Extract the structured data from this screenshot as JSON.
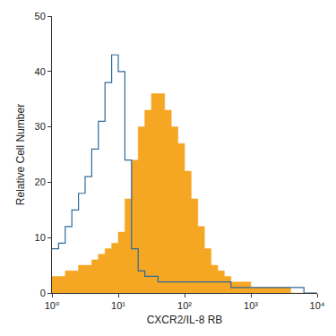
{
  "chart_data": {
    "type": "histogram",
    "x_label": "CXCR2/IL-8 RB",
    "y_label": "Relative Cell Number",
    "log": "x",
    "grid": false,
    "bins": [
      1,
      1.259,
      1.585,
      1.995,
      2.512,
      3.162,
      3.981,
      5.012,
      6.31,
      7.943,
      10,
      12.59,
      15.85,
      19.95,
      25.12,
      31.62,
      39.81,
      50.12,
      63.1,
      79.43,
      100,
      125.9,
      158.5,
      199.5,
      251.2,
      316.2,
      398.1,
      501.2,
      631,
      794.3,
      1000,
      1259,
      1585,
      1995,
      2512,
      3162,
      3981,
      5012,
      6310,
      7943,
      10000
    ],
    "series": [
      {
        "color": "#f5a623",
        "type": "filled",
        "values": [
          3,
          3,
          4,
          4,
          5,
          5,
          6,
          7,
          8,
          9,
          11,
          17,
          24,
          30,
          33,
          36,
          36,
          33,
          30,
          27,
          22,
          17,
          12,
          8,
          5,
          4,
          3,
          2,
          2,
          2,
          1,
          1,
          1,
          1,
          1,
          1,
          0,
          0,
          0,
          0
        ]
      },
      {
        "color": "#2f6a9c",
        "type": "outline",
        "values": [
          8,
          9,
          12,
          15,
          18,
          21,
          26,
          31,
          38,
          43,
          40,
          24,
          8,
          4,
          3,
          3,
          2,
          2,
          2,
          2,
          2,
          2,
          2,
          2,
          2,
          2,
          2,
          1,
          1,
          1,
          1,
          1,
          1,
          1,
          1,
          1,
          1,
          1,
          0,
          0
        ]
      }
    ],
    "xlim": [
      1,
      10000
    ],
    "xticks": [
      {
        "value": 1,
        "label": "10⁰"
      },
      {
        "value": 10,
        "label": "10¹"
      },
      {
        "value": 100,
        "label": "10²"
      },
      {
        "value": 1000,
        "label": "10³"
      },
      {
        "value": 10000,
        "label": "10⁴"
      }
    ],
    "ylim": [
      0,
      50
    ],
    "yticks": [
      0,
      10,
      20,
      30,
      40,
      50
    ]
  }
}
